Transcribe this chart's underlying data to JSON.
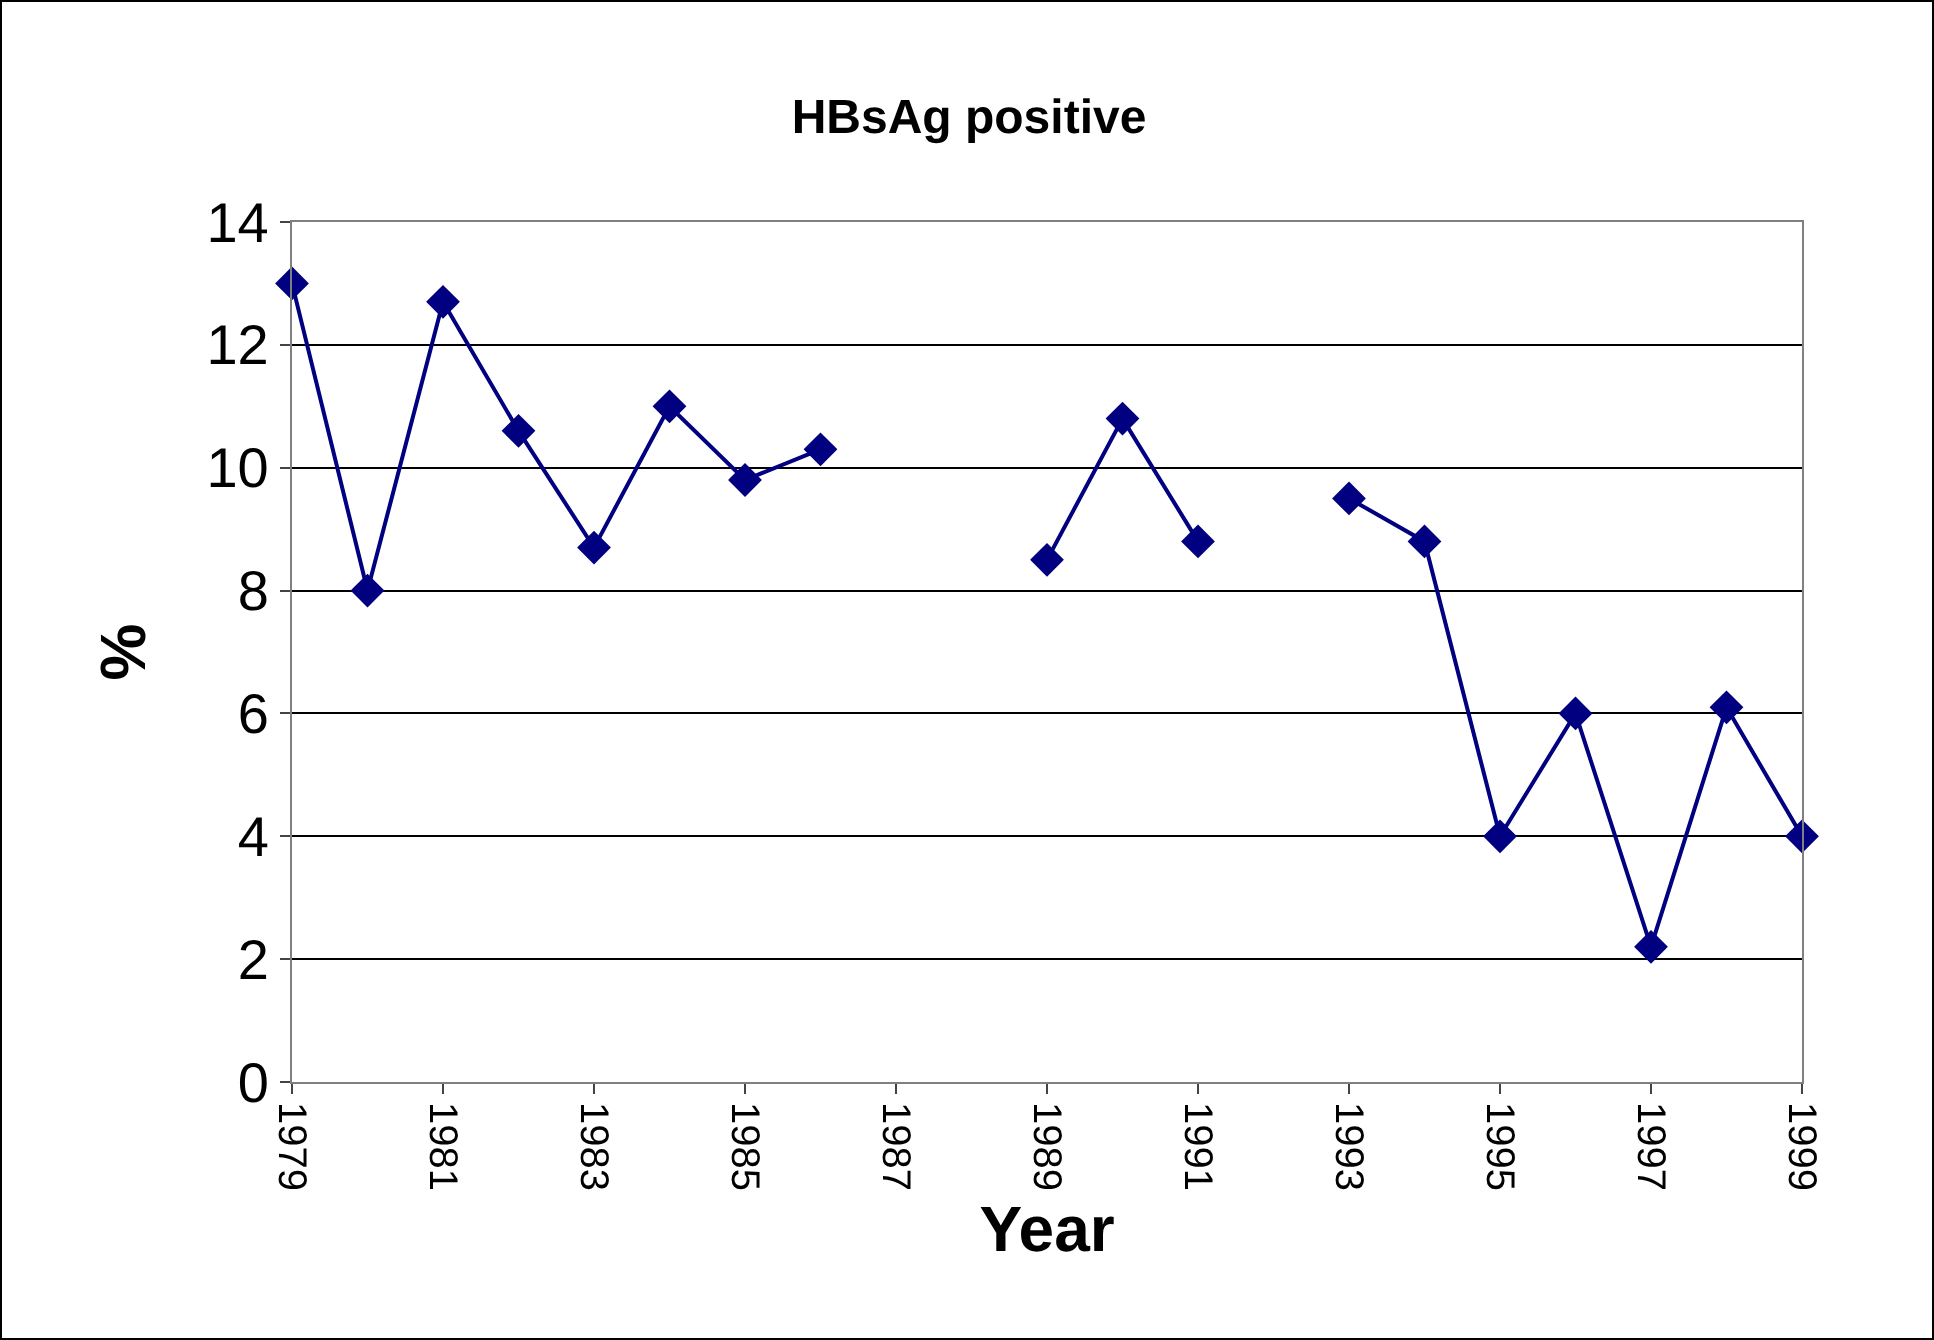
{
  "chart_data": {
    "type": "line",
    "title": "HBsAg positive",
    "xlabel": "Year",
    "ylabel": "%",
    "x": [
      1979,
      1980,
      1981,
      1982,
      1983,
      1984,
      1985,
      1986,
      1987,
      1988,
      1989,
      1990,
      1991,
      1992,
      1993,
      1994,
      1995,
      1996,
      1997,
      1998,
      1999
    ],
    "series": [
      {
        "color": "#000080",
        "values": [
          13,
          8,
          12.7,
          10.6,
          8.7,
          11,
          9.8,
          10.3,
          null,
          null,
          8.5,
          10.8,
          8.8,
          null,
          9.5,
          8.8,
          4,
          6,
          2.2,
          6.1,
          4
        ]
      }
    ],
    "xlim": [
      1979,
      1999
    ],
    "xticks": [
      1979,
      1981,
      1983,
      1985,
      1987,
      1989,
      1991,
      1993,
      1995,
      1997,
      1999
    ],
    "ylim": [
      0,
      14
    ],
    "yticks": [
      0,
      2,
      4,
      6,
      8,
      10,
      12,
      14
    ],
    "grid": "y",
    "marker": "diamond",
    "line_style": "solid"
  }
}
